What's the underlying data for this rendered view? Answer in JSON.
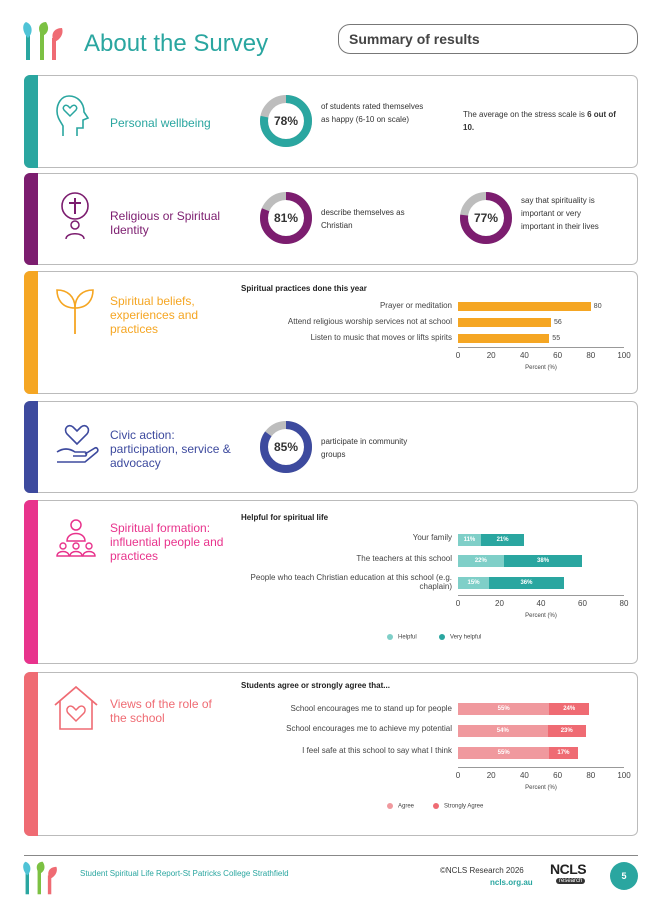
{
  "header": {
    "title": "About the Survey",
    "summary": "Summary of results"
  },
  "colors": {
    "teal": "#2aa6a0",
    "purple": "#7c1d6f",
    "orange": "#f5a623",
    "navy": "#3d4a9e",
    "pink": "#e8338c",
    "coral": "#ef6b73",
    "grey": "#bdbdbd"
  },
  "sections": {
    "wellbeing": {
      "label": "Personal wellbeing",
      "icon": "head-heart-icon",
      "happy_pct": "78%",
      "happy_value": 78,
      "happy_text": "of students rated themselves as happy (6-10 on scale)",
      "stress_text_pre": "The average on the stress scale is ",
      "stress_text_bold": "6 out of 10."
    },
    "religious": {
      "label": "Religious or Spiritual Identity",
      "icon": "cross-person-icon",
      "christian_pct": "81%",
      "christian_value": 81,
      "christian_text": "describe themselves as Christian",
      "spirituality_pct": "77%",
      "spirituality_value": 77,
      "spirituality_text": "say that spirituality is important or very important in their lives"
    },
    "beliefs": {
      "label": "Spiritual beliefs, experiences and practices",
      "icon": "sprout-icon"
    },
    "civic": {
      "label": "Civic action: participation, service & advocacy",
      "icon": "hand-heart-icon",
      "community_pct": "85%",
      "community_value": 85,
      "community_text": "participate in community groups"
    },
    "formation": {
      "label": "Spiritual formation: influential people and practices",
      "icon": "people-group-icon"
    },
    "school": {
      "label": "Views of the role of the school",
      "icon": "house-heart-icon"
    }
  },
  "chart_data": [
    {
      "type": "bar",
      "title": "Spiritual practices done this year",
      "categories": [
        "Prayer or meditation",
        "Attend religious worship services not at school",
        "Listen to music that moves or lifts spirits"
      ],
      "values": [
        80,
        56,
        55
      ],
      "xlabel": "Percent (%)",
      "ticks": [
        0,
        20,
        40,
        60,
        80,
        100
      ],
      "xlim": [
        0,
        100
      ]
    },
    {
      "type": "bar",
      "stacked": true,
      "title": "Helpful for spiritual life",
      "categories": [
        "Your family",
        "The teachers at this school",
        "People who teach Christian education at this school (e.g. chaplain)"
      ],
      "series": [
        {
          "name": "Helpful",
          "values": [
            11,
            22,
            15
          ],
          "labels": [
            "11%",
            "22%",
            "15%"
          ]
        },
        {
          "name": "Very helpful",
          "values": [
            21,
            38,
            36
          ],
          "labels": [
            "21%",
            "38%",
            "36%"
          ]
        }
      ],
      "xlabel": "Percent (%)",
      "ticks": [
        0,
        20,
        40,
        60,
        80
      ],
      "xlim": [
        0,
        80
      ],
      "legend": "bottom"
    },
    {
      "type": "bar",
      "stacked": true,
      "title": "Students agree or strongly agree that...",
      "categories": [
        "School encourages me to stand up for people",
        "School encourages me to achieve my potential",
        "I feel safe at this school to say what I think"
      ],
      "series": [
        {
          "name": "Agree",
          "values": [
            55,
            54,
            55
          ],
          "labels": [
            "55%",
            "54%",
            "55%"
          ]
        },
        {
          "name": "Strongly Agree",
          "values": [
            24,
            23,
            17
          ],
          "labels": [
            "24%",
            "23%",
            "17%"
          ]
        }
      ],
      "xlabel": "Percent (%)",
      "ticks": [
        0,
        20,
        40,
        60,
        80,
        100
      ],
      "xlim": [
        0,
        100
      ],
      "legend": "bottom"
    }
  ],
  "footer": {
    "report": "Student Spiritual Life Report-St Patricks College Strathfield",
    "copyright": "©NCLS Research 2026",
    "url": "ncls.org.au",
    "logo": "NCLS",
    "logo_sub": "research",
    "page": "5"
  }
}
